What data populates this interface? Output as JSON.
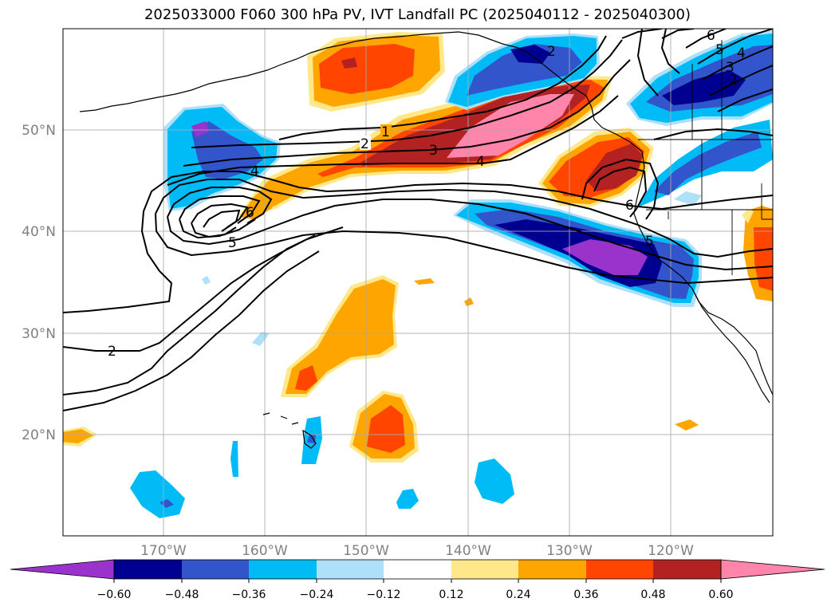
{
  "title": "2025033000 F060 300 hPa PV, IVT Landfall PC (2025040112 - 2025040300)",
  "latitude_labels": [
    "50°N",
    "40°N",
    "30°N",
    "20°N"
  ],
  "longitude_labels": [
    "170°W",
    "160°W",
    "150°W",
    "140°W",
    "130°W",
    "120°W"
  ],
  "colorbar": {
    "ticks": [
      "−0.60",
      "−0.48",
      "−0.36",
      "−0.24",
      "−0.12",
      "0.12",
      "0.24",
      "0.36",
      "0.48",
      "0.60"
    ],
    "colors": [
      "#9933cc",
      "#000090",
      "#3355cc",
      "#00bbf5",
      "#aee0fa",
      "#ffffff",
      "#ffe88a",
      "#ffa500",
      "#ff4500",
      "#b22222",
      "#ff85aa"
    ]
  },
  "contour_labels": [
    "1",
    "2",
    "3",
    "4",
    "4",
    "5",
    "6",
    "2",
    "2",
    "5",
    "4",
    "3",
    "2",
    "6",
    "6",
    "5"
  ],
  "colors": {
    "positive_orange": "#ffa500",
    "positive_red": "#ff4500",
    "positive_darkred": "#b22222",
    "positive_pink": "#ff85aa",
    "negative_cyan": "#00bbf5",
    "negative_blue": "#3355cc",
    "negative_navy": "#000090",
    "negative_purple": "#9933cc"
  }
}
